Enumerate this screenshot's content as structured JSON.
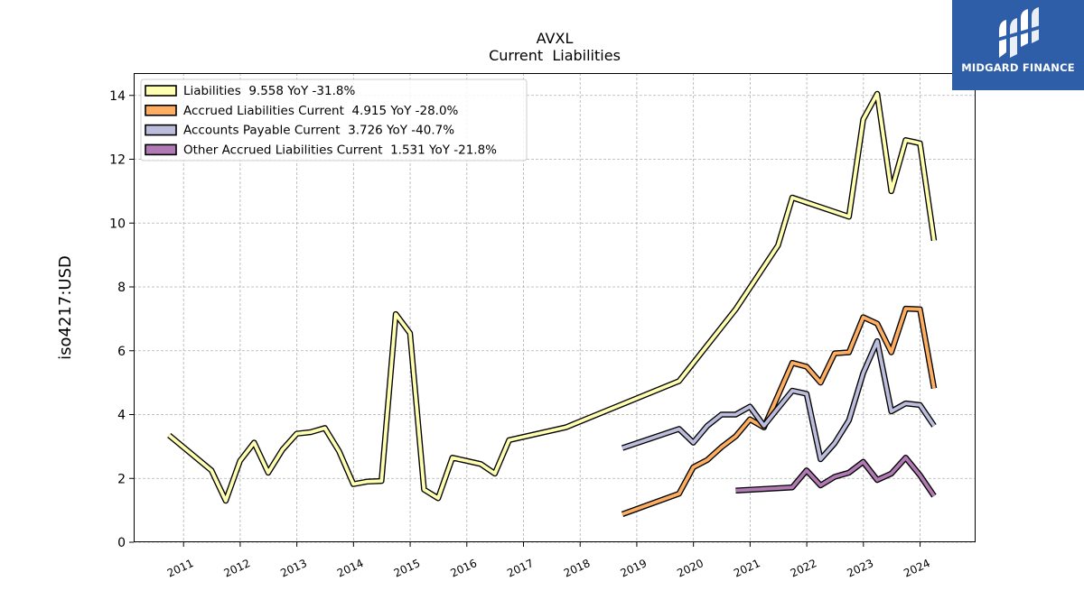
{
  "header": {
    "title": "AVXL",
    "subtitle": "Current  Liabilities"
  },
  "logo": {
    "text": "MIDGARD FINANCE",
    "icon": "midgard-logo-icon"
  },
  "chart_data": {
    "type": "line",
    "title": "AVXL",
    "subtitle": "Current  Liabilities",
    "xlabel": "",
    "ylabel": "iso4217:USD",
    "ylim": [
      0,
      14.7
    ],
    "yticks": [
      0,
      2,
      4,
      6,
      8,
      10,
      12,
      14
    ],
    "xticks": [
      "2011",
      "2012",
      "2013",
      "2014",
      "2015",
      "2016",
      "2017",
      "2018",
      "2019",
      "2020",
      "2021",
      "2022",
      "2023",
      "2024"
    ],
    "grid": true,
    "legend_position": "top-left",
    "series": [
      {
        "name": "Liabilities  9.558 YoY -31.8%",
        "color": "#ffffb2",
        "points": [
          [
            "2010-09-30",
            3.35
          ],
          [
            "2011-06-30",
            2.25
          ],
          [
            "2011-09-30",
            1.3
          ],
          [
            "2011-12-31",
            2.55
          ],
          [
            "2012-03-31",
            3.12
          ],
          [
            "2012-06-30",
            2.18
          ],
          [
            "2012-09-30",
            2.9
          ],
          [
            "2012-12-31",
            3.4
          ],
          [
            "2013-03-31",
            3.45
          ],
          [
            "2013-06-30",
            3.58
          ],
          [
            "2013-09-30",
            2.85
          ],
          [
            "2013-12-31",
            1.82
          ],
          [
            "2014-03-31",
            1.9
          ],
          [
            "2014-06-30",
            1.92
          ],
          [
            "2014-09-30",
            7.15
          ],
          [
            "2014-12-31",
            6.55
          ],
          [
            "2015-03-31",
            1.65
          ],
          [
            "2015-06-30",
            1.38
          ],
          [
            "2015-09-30",
            2.65
          ],
          [
            "2015-12-31",
            2.55
          ],
          [
            "2016-03-31",
            2.45
          ],
          [
            "2016-06-30",
            2.15
          ],
          [
            "2016-09-30",
            3.2
          ],
          [
            "2017-09-30",
            3.6
          ],
          [
            "2019-09-30",
            5.05
          ],
          [
            "2020-09-30",
            7.3
          ],
          [
            "2021-06-30",
            9.3
          ],
          [
            "2021-09-30",
            10.8
          ],
          [
            "2022-09-30",
            10.2
          ],
          [
            "2022-12-31",
            13.25
          ],
          [
            "2023-03-31",
            14.05
          ],
          [
            "2023-06-30",
            11.0
          ],
          [
            "2023-09-30",
            12.6
          ],
          [
            "2023-12-31",
            12.5
          ],
          [
            "2024-03-31",
            9.45
          ]
        ]
      },
      {
        "name": "Accrued Liabilities Current  4.915 YoY -28.0%",
        "color": "#fdae61",
        "points": [
          [
            "2018-09-30",
            0.88
          ],
          [
            "2019-09-30",
            1.52
          ],
          [
            "2019-12-31",
            2.35
          ],
          [
            "2020-03-31",
            2.58
          ],
          [
            "2020-06-30",
            2.98
          ],
          [
            "2020-09-30",
            3.32
          ],
          [
            "2020-12-31",
            3.85
          ],
          [
            "2021-03-31",
            3.6
          ],
          [
            "2021-06-30",
            4.6
          ],
          [
            "2021-09-30",
            5.62
          ],
          [
            "2021-12-31",
            5.5
          ],
          [
            "2022-03-31",
            5.0
          ],
          [
            "2022-06-30",
            5.92
          ],
          [
            "2022-09-30",
            5.95
          ],
          [
            "2022-12-31",
            7.05
          ],
          [
            "2023-03-31",
            6.85
          ],
          [
            "2023-06-30",
            5.95
          ],
          [
            "2023-09-30",
            7.32
          ],
          [
            "2023-12-31",
            7.3
          ],
          [
            "2024-03-31",
            4.82
          ]
        ]
      },
      {
        "name": "Accounts Payable Current  3.726 YoY -40.7%",
        "color": "#bcbddc",
        "points": [
          [
            "2018-09-30",
            2.95
          ],
          [
            "2019-09-30",
            3.55
          ],
          [
            "2019-12-31",
            3.12
          ],
          [
            "2020-03-31",
            3.65
          ],
          [
            "2020-06-30",
            4.0
          ],
          [
            "2020-09-30",
            4.0
          ],
          [
            "2020-12-31",
            4.25
          ],
          [
            "2021-03-31",
            3.65
          ],
          [
            "2021-06-30",
            4.2
          ],
          [
            "2021-09-30",
            4.75
          ],
          [
            "2021-12-31",
            4.65
          ],
          [
            "2022-03-31",
            2.6
          ],
          [
            "2022-06-30",
            3.1
          ],
          [
            "2022-09-30",
            3.82
          ],
          [
            "2022-12-31",
            5.3
          ],
          [
            "2023-03-31",
            6.3
          ],
          [
            "2023-06-30",
            4.1
          ],
          [
            "2023-09-30",
            4.35
          ],
          [
            "2023-12-31",
            4.3
          ],
          [
            "2024-03-31",
            3.65
          ]
        ]
      },
      {
        "name": "Other Accrued Liabilities Current  1.531 YoY -21.8%",
        "color": "#b27ab4",
        "points": [
          [
            "2020-09-30",
            1.62
          ],
          [
            "2021-09-30",
            1.72
          ],
          [
            "2021-12-31",
            2.25
          ],
          [
            "2022-03-31",
            1.78
          ],
          [
            "2022-06-30",
            2.05
          ],
          [
            "2022-09-30",
            2.18
          ],
          [
            "2022-12-31",
            2.52
          ],
          [
            "2023-03-31",
            1.95
          ],
          [
            "2023-06-30",
            2.15
          ],
          [
            "2023-09-30",
            2.65
          ],
          [
            "2023-12-31",
            2.1
          ],
          [
            "2024-03-31",
            1.45
          ]
        ]
      }
    ]
  }
}
